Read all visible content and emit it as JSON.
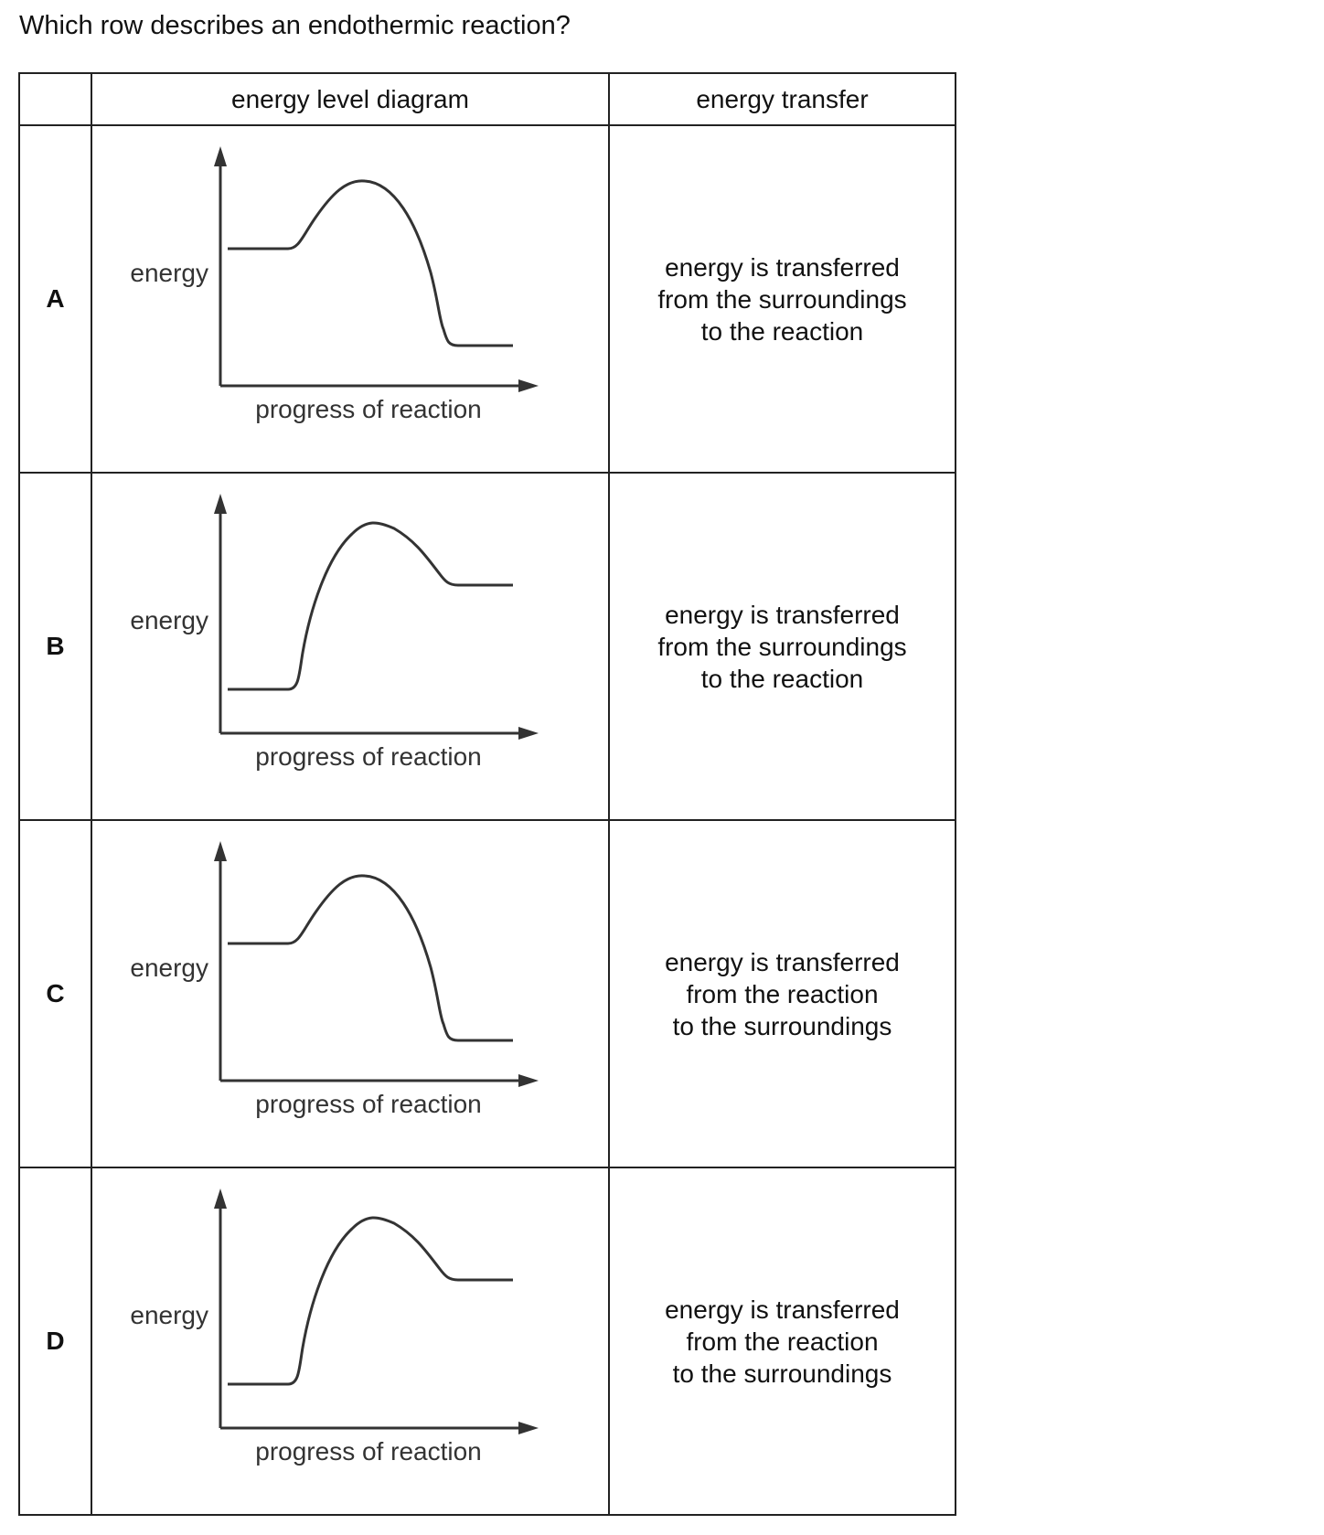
{
  "question": "Which row describes an endothermic reaction?",
  "table": {
    "headers": [
      "",
      "energy level diagram",
      "energy transfer"
    ],
    "axis_labels": {
      "y": "energy",
      "x": "progress of reaction"
    },
    "rows": [
      {
        "letter": "A",
        "diagram": "exothermic-profile",
        "transfer": [
          "energy is transferred",
          "from the surroundings",
          "to the reaction"
        ]
      },
      {
        "letter": "B",
        "diagram": "endothermic-profile",
        "transfer": [
          "energy is transferred",
          "from the surroundings",
          "to the reaction"
        ]
      },
      {
        "letter": "C",
        "diagram": "exothermic-profile",
        "transfer": [
          "energy is transferred",
          "from the reaction",
          "to the surroundings"
        ]
      },
      {
        "letter": "D",
        "diagram": "endothermic-profile",
        "transfer": [
          "energy is transferred",
          "from the reaction",
          "to the surroundings"
        ]
      }
    ]
  }
}
